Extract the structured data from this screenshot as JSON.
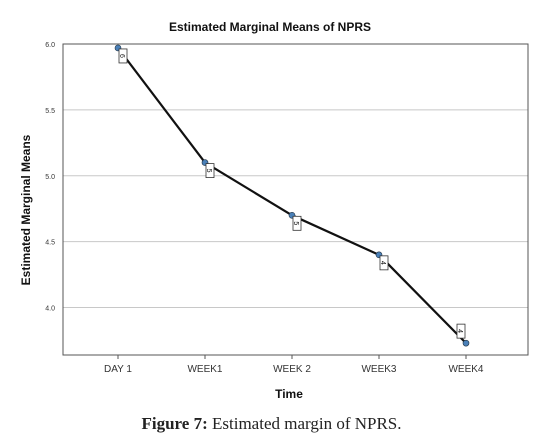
{
  "caption": {
    "label": "Figure 7:",
    "text": "Estimated margin of NPRS."
  },
  "colors": {
    "line": "#111111",
    "marker": "#4a80b8",
    "grid": "#c8c8c8"
  },
  "chart_data": {
    "type": "line",
    "title": "Estimated Marginal Means of NPRS",
    "xlabel": "Time",
    "ylabel": "Estimated Marginal Means",
    "categories": [
      "DAY 1",
      "WEEK1",
      "WEEK 2",
      "WEEK3",
      "WEEK4"
    ],
    "values": [
      5.97,
      5.1,
      4.7,
      4.4,
      3.73
    ],
    "point_labels": [
      "6",
      "5",
      "5",
      "4",
      "4"
    ],
    "yticks": [
      "6.0",
      "5.5",
      "5.0",
      "4.5",
      "4.0"
    ],
    "ytick_values": [
      6.0,
      5.5,
      5.0,
      4.5,
      4.0
    ],
    "ylim": [
      3.64,
      6.0
    ],
    "grid": true,
    "legend": "none"
  }
}
